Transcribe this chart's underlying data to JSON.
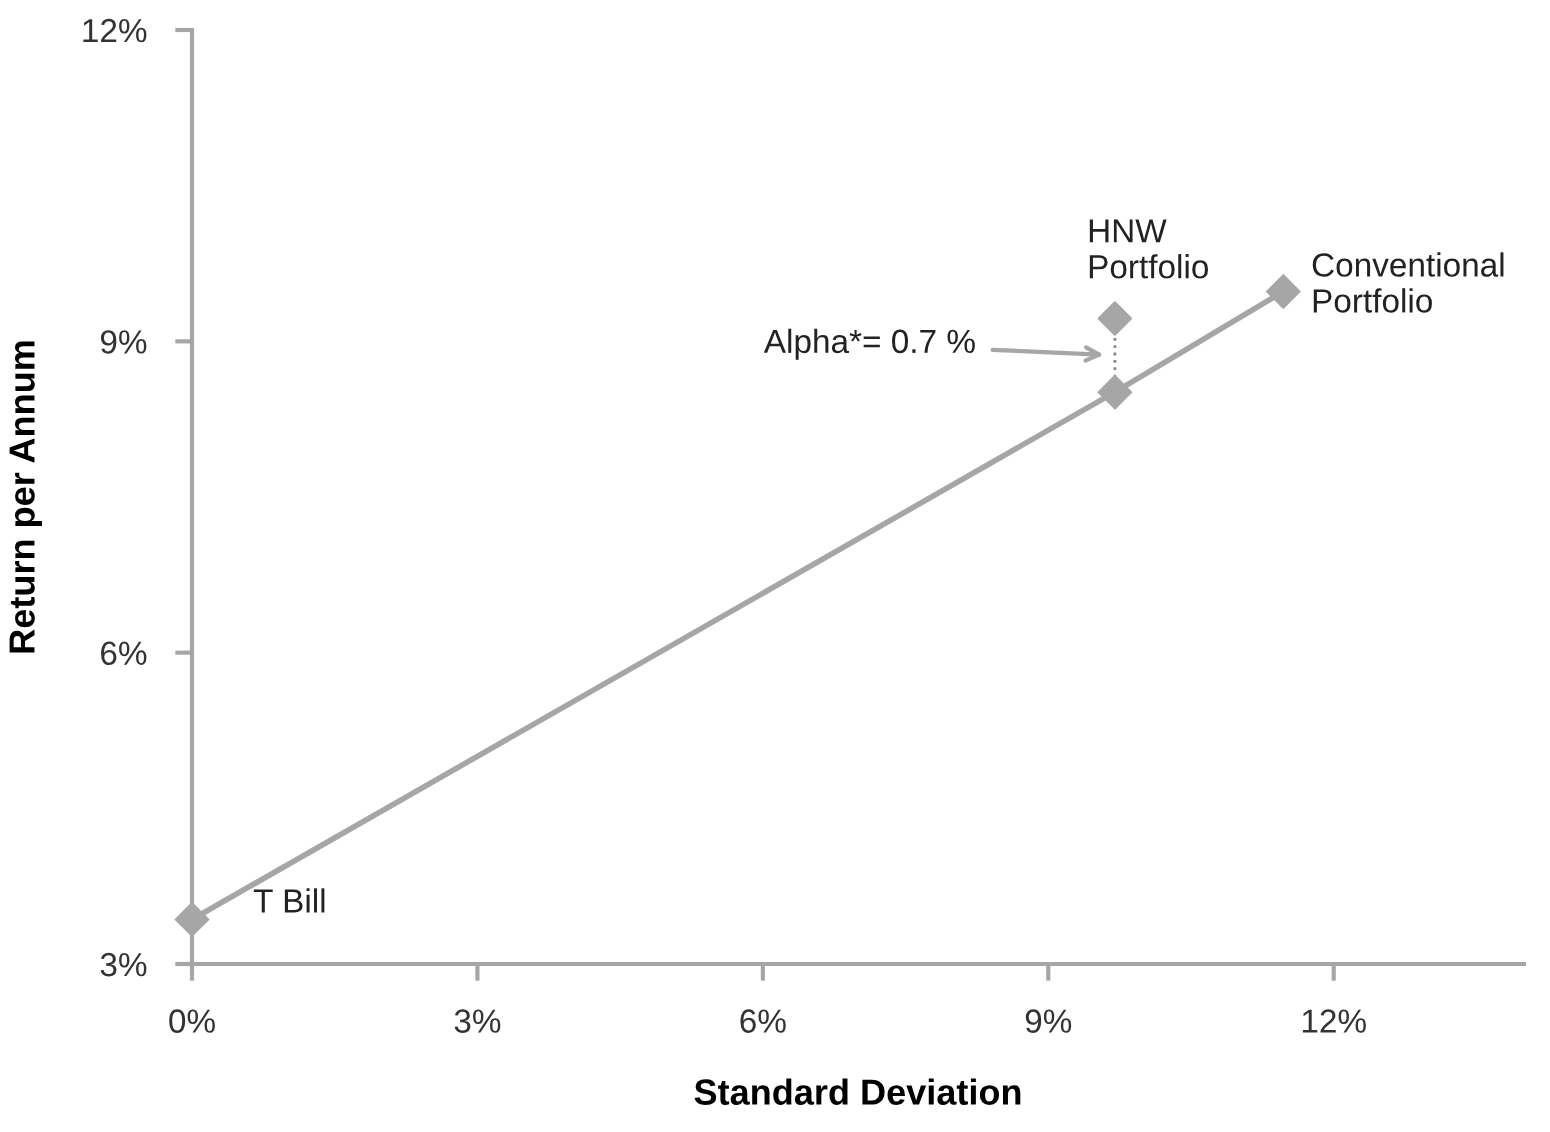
{
  "chart_data": {
    "type": "line",
    "xlabel": "Standard Deviation",
    "ylabel": "Return per Annum",
    "xlim": [
      0,
      14
    ],
    "xticks": [
      {
        "value": 0,
        "label": "0%"
      },
      {
        "value": 3,
        "label": "3%"
      },
      {
        "value": 6,
        "label": "6%"
      },
      {
        "value": 9,
        "label": "9%"
      },
      {
        "value": 12,
        "label": "12%"
      }
    ],
    "ylim": [
      3,
      12
    ],
    "yticks": [
      {
        "value": 3,
        "label": "3%"
      },
      {
        "value": 6,
        "label": "6%"
      },
      {
        "value": 9,
        "label": "9%"
      },
      {
        "value": 12,
        "label": "12%"
      }
    ],
    "grid": false,
    "legend": false,
    "marker": "diamond",
    "line_style": "solid",
    "series": [
      {
        "color": "#a6a6a6",
        "x": [
          0,
          9.7,
          11.47
        ],
        "values": [
          3.43,
          8.51,
          9.48
        ]
      },
      {
        "type": "scatter",
        "color": "#a6a6a6",
        "x": [
          9.7
        ],
        "values": [
          9.22
        ]
      }
    ],
    "annotations": [
      {
        "text": "T Bill",
        "x": 0,
        "y": 3.43
      },
      {
        "text": "HNW\nPortfolio",
        "x": 9.7,
        "y": 9.22
      },
      {
        "text": "Conventional\nPortfolio",
        "x": 11.47,
        "y": 9.48
      },
      "Alpha*= 0.7 %"
    ]
  }
}
